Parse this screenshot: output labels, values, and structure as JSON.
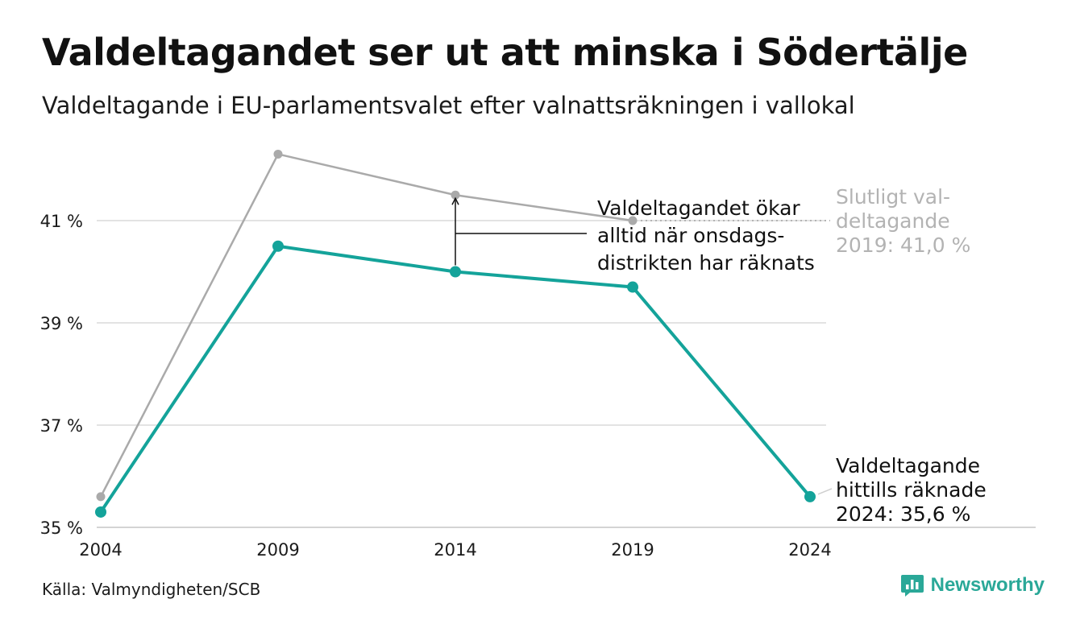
{
  "title": "Valdeltagandet ser ut att minska i Södertälje",
  "subtitle": "Valdeltagande i EU-parlamentsvalet efter valnattsräkningen i vallokal",
  "source": "Källa: Valmyndigheten/SCB",
  "brand": "Newsworthy",
  "colors": {
    "counted": "#14a39a",
    "final": "#aaaaaa",
    "grid": "#e3e3e3",
    "brand": "#2aa898"
  },
  "chart_data": {
    "type": "line",
    "x": [
      "2004",
      "2009",
      "2014",
      "2019",
      "2024"
    ],
    "ylim": [
      35,
      42.5
    ],
    "yticks": [
      {
        "value": 35,
        "label": "35 %"
      },
      {
        "value": 37,
        "label": "37 %"
      },
      {
        "value": 39,
        "label": "39 %"
      },
      {
        "value": 41,
        "label": "41 %"
      }
    ],
    "grid": true,
    "series": [
      {
        "key": "final",
        "values": [
          35.6,
          42.3,
          41.5,
          41.0,
          null
        ]
      },
      {
        "key": "counted",
        "values": [
          35.3,
          40.5,
          40.0,
          39.7,
          35.6
        ]
      }
    ],
    "annotations": {
      "final": [
        "Slutligt val-",
        "deltagande",
        "2019: 41,0 %"
      ],
      "counted": [
        "Valdeltagande",
        "hittills räknade",
        "2024: 35,6 %"
      ],
      "gap": [
        "Valdeltagandet ökar",
        "alltid när onsdags-",
        "distrikten har räknats"
      ]
    }
  }
}
